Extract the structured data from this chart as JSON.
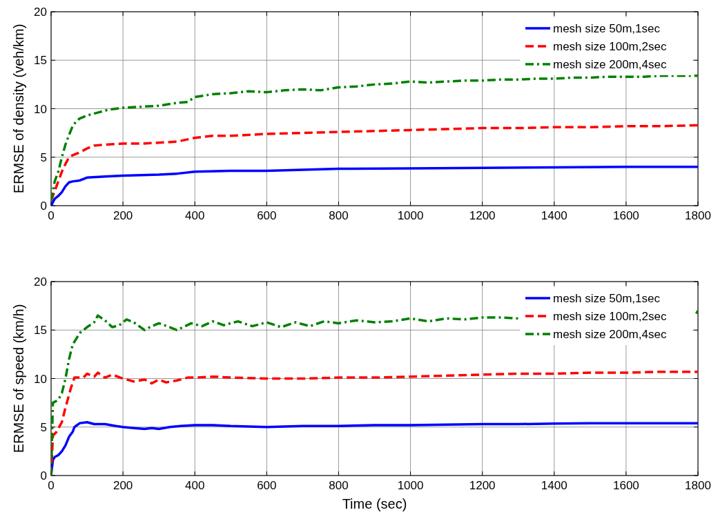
{
  "chart_data": [
    {
      "type": "line",
      "ylabel": "ERMSE of density (veh/km)",
      "xlim": [
        0,
        1800
      ],
      "xticks": [
        0,
        200,
        400,
        600,
        800,
        1000,
        1200,
        1400,
        1600,
        1800
      ],
      "ylim": [
        0,
        20
      ],
      "yticks": [
        0,
        5,
        10,
        15,
        20
      ],
      "grid": true,
      "legend": "top right",
      "series": [
        {
          "name": "mesh size 50m,1sec",
          "color": "#0000ff",
          "line_style": "solid",
          "x": [
            0,
            10,
            20,
            30,
            40,
            50,
            60,
            80,
            100,
            150,
            200,
            300,
            350,
            400,
            500,
            600,
            700,
            800,
            1000,
            1200,
            1400,
            1600,
            1800
          ],
          "values": [
            0,
            0.7,
            1.0,
            1.4,
            2.0,
            2.4,
            2.5,
            2.6,
            2.9,
            3.0,
            3.1,
            3.2,
            3.3,
            3.5,
            3.6,
            3.6,
            3.7,
            3.8,
            3.85,
            3.9,
            3.95,
            4.0,
            4.0
          ]
        },
        {
          "name": "mesh size 100m,2sec",
          "color": "#ff0000",
          "line_style": "dashed",
          "x": [
            0,
            10,
            20,
            30,
            40,
            50,
            60,
            80,
            100,
            120,
            150,
            200,
            250,
            300,
            350,
            400,
            450,
            500,
            600,
            700,
            800,
            900,
            1000,
            1100,
            1200,
            1300,
            1400,
            1500,
            1600,
            1700,
            1800
          ],
          "values": [
            0.5,
            1.5,
            2.5,
            3.5,
            4.3,
            5.0,
            5.2,
            5.5,
            5.9,
            6.2,
            6.3,
            6.4,
            6.4,
            6.5,
            6.6,
            7.0,
            7.2,
            7.2,
            7.4,
            7.5,
            7.6,
            7.7,
            7.8,
            7.9,
            8.0,
            8.0,
            8.1,
            8.1,
            8.2,
            8.2,
            8.3
          ]
        },
        {
          "name": "mesh size 200m,4sec",
          "color": "#008000",
          "line_style": "dashdot",
          "x": [
            0,
            10,
            20,
            30,
            40,
            50,
            60,
            70,
            80,
            100,
            130,
            160,
            200,
            250,
            300,
            350,
            380,
            400,
            450,
            500,
            550,
            600,
            650,
            700,
            750,
            800,
            850,
            900,
            950,
            1000,
            1050,
            1100,
            1150,
            1200,
            1250,
            1300,
            1350,
            1400,
            1450,
            1500,
            1550,
            1600,
            1650,
            1700,
            1750,
            1800
          ],
          "values": [
            0.5,
            2.5,
            3.5,
            5.0,
            6.3,
            7.3,
            8.2,
            8.7,
            9.0,
            9.3,
            9.6,
            9.9,
            10.1,
            10.2,
            10.3,
            10.6,
            10.7,
            11.2,
            11.5,
            11.6,
            11.8,
            11.7,
            11.9,
            12.0,
            11.9,
            12.2,
            12.3,
            12.5,
            12.6,
            12.8,
            12.7,
            12.8,
            12.9,
            12.9,
            13.0,
            13.0,
            13.1,
            13.1,
            13.2,
            13.2,
            13.3,
            13.3,
            13.3,
            13.4,
            13.4,
            13.4
          ]
        }
      ]
    },
    {
      "type": "line",
      "xlabel": "Time (sec)",
      "ylabel": "ERMSE of speed (km/h)",
      "xlim": [
        0,
        1800
      ],
      "xticks": [
        0,
        200,
        400,
        600,
        800,
        1000,
        1200,
        1400,
        1600,
        1800
      ],
      "ylim": [
        0,
        20
      ],
      "yticks": [
        0,
        5,
        10,
        15,
        20
      ],
      "grid": true,
      "legend": "top right",
      "series": [
        {
          "name": "mesh size 50m,1sec",
          "color": "#0000ff",
          "line_style": "solid",
          "x": [
            0,
            5,
            10,
            20,
            30,
            40,
            50,
            60,
            65,
            80,
            100,
            120,
            150,
            180,
            200,
            230,
            260,
            280,
            300,
            330,
            360,
            400,
            450,
            500,
            600,
            700,
            800,
            900,
            1000,
            1100,
            1200,
            1300,
            1400,
            1500,
            1600,
            1700,
            1800
          ],
          "values": [
            0,
            1.6,
            1.9,
            2.1,
            2.5,
            3.1,
            4.0,
            4.5,
            5.0,
            5.4,
            5.5,
            5.3,
            5.3,
            5.1,
            5.0,
            4.9,
            4.8,
            4.9,
            4.8,
            5.0,
            5.1,
            5.2,
            5.2,
            5.1,
            5.0,
            5.1,
            5.1,
            5.2,
            5.2,
            5.25,
            5.3,
            5.3,
            5.35,
            5.4,
            5.4,
            5.4,
            5.4
          ]
        },
        {
          "name": "mesh size 100m,2sec",
          "color": "#ff0000",
          "line_style": "dashed",
          "x": [
            0,
            5,
            15,
            30,
            40,
            55,
            65,
            90,
            100,
            120,
            130,
            150,
            170,
            200,
            230,
            260,
            280,
            300,
            320,
            350,
            380,
            400,
            450,
            500,
            600,
            700,
            800,
            900,
            1000,
            1100,
            1200,
            1300,
            1400,
            1500,
            1600,
            1700,
            1800
          ],
          "values": [
            0,
            4.1,
            4.5,
            5.5,
            7.0,
            9.0,
            10.1,
            10.1,
            10.5,
            10.2,
            10.6,
            10.1,
            10.4,
            10.0,
            9.7,
            9.9,
            9.5,
            9.9,
            9.6,
            9.8,
            10.1,
            10.1,
            10.2,
            10.1,
            10.0,
            10.0,
            10.1,
            10.1,
            10.2,
            10.3,
            10.4,
            10.5,
            10.5,
            10.6,
            10.6,
            10.7,
            10.7
          ]
        },
        {
          "name": "mesh size 200m,4sec",
          "color": "#008000",
          "line_style": "dashdot",
          "x": [
            0,
            5,
            20,
            30,
            40,
            50,
            60,
            80,
            100,
            120,
            130,
            150,
            170,
            190,
            210,
            230,
            260,
            280,
            300,
            330,
            350,
            390,
            420,
            450,
            480,
            520,
            560,
            600,
            640,
            680,
            720,
            760,
            800,
            850,
            900,
            950,
            1000,
            1050,
            1100,
            1150,
            1200,
            1250,
            1300,
            1310,
            1790,
            1795,
            1800
          ],
          "values": [
            0,
            7.5,
            7.8,
            8.5,
            10.0,
            12.0,
            13.5,
            14.7,
            15.3,
            15.8,
            16.5,
            16.0,
            15.3,
            15.5,
            16.1,
            15.8,
            15.0,
            15.4,
            15.7,
            15.3,
            15.0,
            15.7,
            15.4,
            15.9,
            15.5,
            15.9,
            15.4,
            15.8,
            15.3,
            15.8,
            15.4,
            15.9,
            15.7,
            16.0,
            15.8,
            15.9,
            16.2,
            15.9,
            16.2,
            16.1,
            16.3,
            16.3,
            16.2,
            null,
            null,
            16.7,
            17.0
          ]
        }
      ]
    }
  ]
}
